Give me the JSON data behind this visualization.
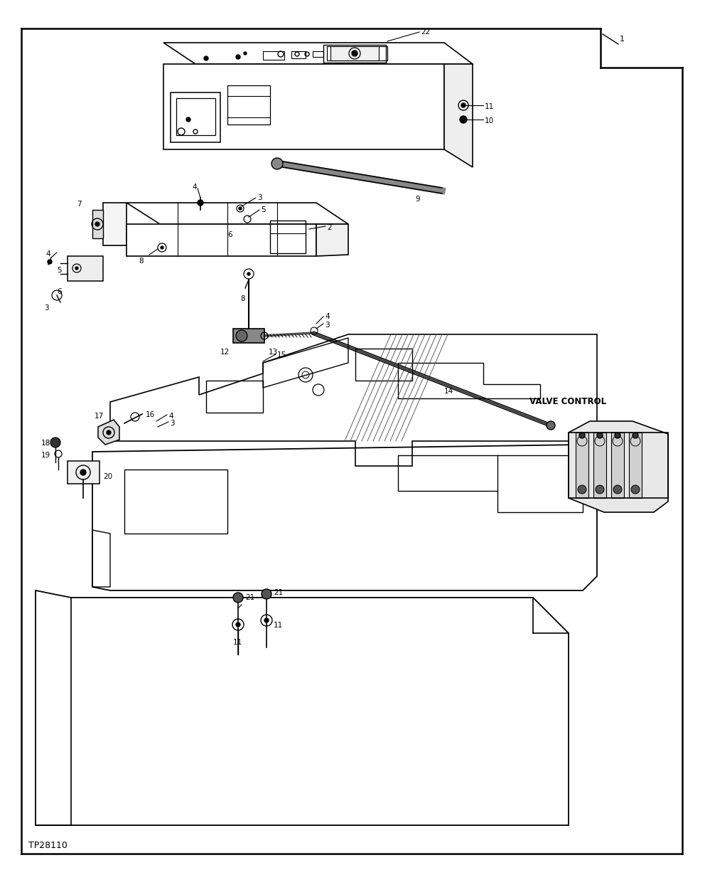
{
  "bg_color": "#ffffff",
  "line_color": "#000000",
  "figure_width": 9.92,
  "figure_height": 12.37,
  "dpi": 100,
  "bottom_label": "TP28110",
  "valve_control_label": "VALVE CONTROL"
}
